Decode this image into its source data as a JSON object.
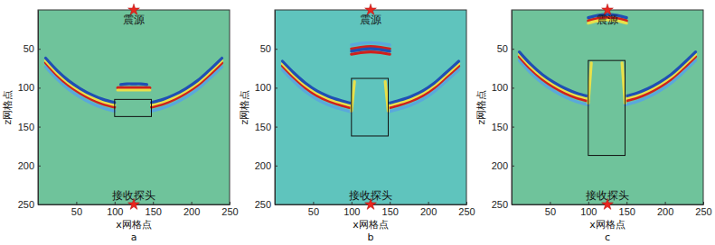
{
  "chart_data": [
    {
      "type": "line",
      "title": "a",
      "x_label": "x网格点",
      "y_label": "z网格点",
      "color": "#6fc39b",
      "xlim": [
        0,
        250
      ],
      "ylim": [
        250,
        0
      ],
      "xticks": [
        50,
        100,
        150,
        200,
        250
      ],
      "yticks": [
        50,
        100,
        150,
        200,
        250
      ],
      "rectangle": {
        "x": [
          100,
          148
        ],
        "y": [
          115,
          137
        ]
      },
      "annotations": [
        {
          "text": "震源",
          "x": 125,
          "y": 0
        },
        {
          "text": "接收探头",
          "x": 125,
          "y": 250
        }
      ],
      "series": [
        {
          "color": "#5aa8dc",
          "x": [
            10,
            25,
            40,
            55,
            70,
            85,
            100
          ],
          "values": [
            73,
            89,
            102,
            112,
            120,
            126,
            130
          ]
        },
        {
          "color": "#d0201c",
          "x": [
            10,
            25,
            40,
            55,
            70,
            85,
            100
          ],
          "values": [
            68,
            84,
            97,
            107,
            115,
            121,
            125
          ]
        },
        {
          "color": "#e8e04a",
          "x": [
            10,
            25,
            40,
            55,
            70,
            85,
            100
          ],
          "values": [
            65,
            81,
            94,
            104,
            112,
            118,
            122
          ]
        },
        {
          "color": "#1f4fb4",
          "x": [
            10,
            25,
            40,
            55,
            70,
            85,
            100
          ],
          "values": [
            62,
            78,
            91,
            101,
            109,
            115,
            119
          ]
        },
        {
          "color": "#5aa8dc",
          "x": [
            148,
            163,
            178,
            193,
            208,
            223,
            240
          ],
          "values": [
            130,
            126,
            120,
            112,
            102,
            89,
            73
          ]
        },
        {
          "color": "#d0201c",
          "x": [
            148,
            163,
            178,
            193,
            208,
            223,
            240
          ],
          "values": [
            125,
            121,
            115,
            107,
            97,
            84,
            68
          ]
        },
        {
          "color": "#e8e04a",
          "x": [
            148,
            163,
            178,
            193,
            208,
            223,
            240
          ],
          "values": [
            122,
            118,
            112,
            104,
            94,
            81,
            65
          ]
        },
        {
          "color": "#1f4fb4",
          "x": [
            148,
            163,
            178,
            193,
            208,
            223,
            240
          ],
          "values": [
            119,
            115,
            109,
            101,
            91,
            78,
            62
          ]
        },
        {
          "color": "#1f4fb4",
          "x": [
            108,
            116,
            125,
            134,
            142
          ],
          "values": [
            96,
            95,
            95,
            95,
            96
          ]
        },
        {
          "color": "#d0201c",
          "x": [
            104,
            114,
            125,
            136,
            146
          ],
          "values": [
            100,
            100,
            100,
            100,
            100
          ]
        },
        {
          "color": "#e8e04a",
          "x": [
            104,
            114,
            125,
            136,
            146
          ],
          "values": [
            103,
            103,
            103,
            103,
            103
          ]
        }
      ]
    },
    {
      "type": "line",
      "title": "b",
      "x_label": "x网格点",
      "y_label": "z网格点",
      "color": "#5fc4bd",
      "xlim": [
        0,
        250
      ],
      "ylim": [
        250,
        0
      ],
      "xticks": [
        50,
        100,
        150,
        200,
        250
      ],
      "yticks": [
        50,
        100,
        150,
        200,
        250
      ],
      "rectangle": {
        "x": [
          100,
          148
        ],
        "y": [
          88,
          162
        ]
      },
      "annotations": [
        {
          "text": "震源",
          "x": 125,
          "y": 0
        },
        {
          "text": "接收探头",
          "x": 125,
          "y": 250
        }
      ],
      "series": [
        {
          "color": "#5aa8dc",
          "x": [
            10,
            25,
            40,
            55,
            70,
            85,
            100
          ],
          "values": [
            77,
            92,
            105,
            115,
            122,
            127,
            131
          ]
        },
        {
          "color": "#d0201c",
          "x": [
            10,
            25,
            40,
            55,
            70,
            85,
            100
          ],
          "values": [
            72,
            87,
            100,
            110,
            117,
            122,
            126
          ]
        },
        {
          "color": "#e8e04a",
          "x": [
            10,
            25,
            40,
            55,
            70,
            85,
            100
          ],
          "values": [
            69,
            84,
            97,
            107,
            114,
            119,
            123
          ]
        },
        {
          "color": "#1f4fb4",
          "x": [
            10,
            25,
            40,
            55,
            70,
            85,
            100
          ],
          "values": [
            66,
            81,
            94,
            104,
            111,
            116,
            120
          ]
        },
        {
          "color": "#5aa8dc",
          "x": [
            148,
            163,
            178,
            193,
            208,
            223,
            240
          ],
          "values": [
            131,
            127,
            122,
            115,
            105,
            92,
            77
          ]
        },
        {
          "color": "#d0201c",
          "x": [
            148,
            163,
            178,
            193,
            208,
            223,
            240
          ],
          "values": [
            126,
            122,
            117,
            110,
            100,
            87,
            72
          ]
        },
        {
          "color": "#e8e04a",
          "x": [
            148,
            163,
            178,
            193,
            208,
            223,
            240
          ],
          "values": [
            123,
            119,
            114,
            107,
            97,
            84,
            69
          ]
        },
        {
          "color": "#1f4fb4",
          "x": [
            148,
            163,
            178,
            193,
            208,
            223,
            240
          ],
          "values": [
            120,
            116,
            111,
            104,
            94,
            81,
            66
          ]
        },
        {
          "color": "#5aa8dc",
          "x": [
            100,
            112,
            125,
            138,
            150
          ],
          "values": [
            45,
            43,
            42,
            43,
            45
          ]
        },
        {
          "color": "#d0201c",
          "x": [
            100,
            112,
            125,
            138,
            150
          ],
          "values": [
            50,
            48,
            47,
            48,
            50
          ]
        },
        {
          "color": "#1f4fb4",
          "x": [
            100,
            112,
            125,
            138,
            150
          ],
          "values": [
            53,
            51,
            50,
            51,
            53
          ]
        },
        {
          "color": "#d0201c",
          "x": [
            100,
            112,
            125,
            138,
            150
          ],
          "values": [
            57,
            55,
            54,
            55,
            57
          ]
        },
        {
          "color": "#e8e04a",
          "x": [
            104,
            100
          ],
          "values": [
            92,
            130
          ]
        },
        {
          "color": "#e8e04a",
          "x": [
            144,
            148
          ],
          "values": [
            92,
            130
          ]
        }
      ]
    },
    {
      "type": "line",
      "title": "c",
      "x_label": "x网格点",
      "y_label": "z网格点",
      "color": "#6fc39b",
      "xlim": [
        0,
        250
      ],
      "ylim": [
        250,
        0
      ],
      "xticks": [
        50,
        100,
        150,
        200,
        250
      ],
      "yticks": [
        50,
        100,
        150,
        200,
        250
      ],
      "rectangle": {
        "x": [
          100,
          148
        ],
        "y": [
          65,
          187
        ]
      },
      "annotations": [
        {
          "text": "震源",
          "x": 125,
          "y": 0
        },
        {
          "text": "接收探头",
          "x": 125,
          "y": 250
        }
      ],
      "series": [
        {
          "color": "#5aa8dc",
          "x": [
            10,
            25,
            40,
            55,
            70,
            85,
            100
          ],
          "values": [
            65,
            81,
            94,
            104,
            112,
            118,
            122
          ]
        },
        {
          "color": "#d0201c",
          "x": [
            10,
            25,
            40,
            55,
            70,
            85,
            100
          ],
          "values": [
            60,
            76,
            89,
            99,
            107,
            113,
            117
          ]
        },
        {
          "color": "#e8e04a",
          "x": [
            10,
            25,
            40,
            55,
            70,
            85,
            100
          ],
          "values": [
            57,
            73,
            86,
            96,
            104,
            110,
            114
          ]
        },
        {
          "color": "#1f4fb4",
          "x": [
            10,
            25,
            40,
            55,
            70,
            85,
            100
          ],
          "values": [
            54,
            70,
            83,
            93,
            101,
            107,
            111
          ]
        },
        {
          "color": "#5aa8dc",
          "x": [
            148,
            163,
            178,
            193,
            208,
            223,
            240
          ],
          "values": [
            122,
            118,
            112,
            104,
            94,
            81,
            65
          ]
        },
        {
          "color": "#d0201c",
          "x": [
            148,
            163,
            178,
            193,
            208,
            223,
            240
          ],
          "values": [
            117,
            113,
            107,
            99,
            89,
            76,
            60
          ]
        },
        {
          "color": "#e8e04a",
          "x": [
            148,
            163,
            178,
            193,
            208,
            223,
            240
          ],
          "values": [
            114,
            110,
            104,
            96,
            86,
            73,
            57
          ]
        },
        {
          "color": "#1f4fb4",
          "x": [
            148,
            163,
            178,
            193,
            208,
            223,
            240
          ],
          "values": [
            111,
            107,
            101,
            93,
            83,
            70,
            54
          ]
        },
        {
          "color": "#1f4fb4",
          "x": [
            100,
            112,
            125,
            138,
            150
          ],
          "values": [
            10,
            7,
            6,
            7,
            10
          ]
        },
        {
          "color": "#d0201c",
          "x": [
            100,
            112,
            125,
            138,
            150
          ],
          "values": [
            14,
            11,
            10,
            11,
            14
          ]
        },
        {
          "color": "#e8e04a",
          "x": [
            100,
            112,
            125,
            138,
            150
          ],
          "values": [
            17,
            14,
            13,
            14,
            17
          ]
        },
        {
          "color": "#e8e04a",
          "x": [
            104,
            100
          ],
          "values": [
            68,
            120
          ]
        },
        {
          "color": "#e8e04a",
          "x": [
            144,
            148
          ],
          "values": [
            68,
            120
          ]
        }
      ]
    }
  ]
}
